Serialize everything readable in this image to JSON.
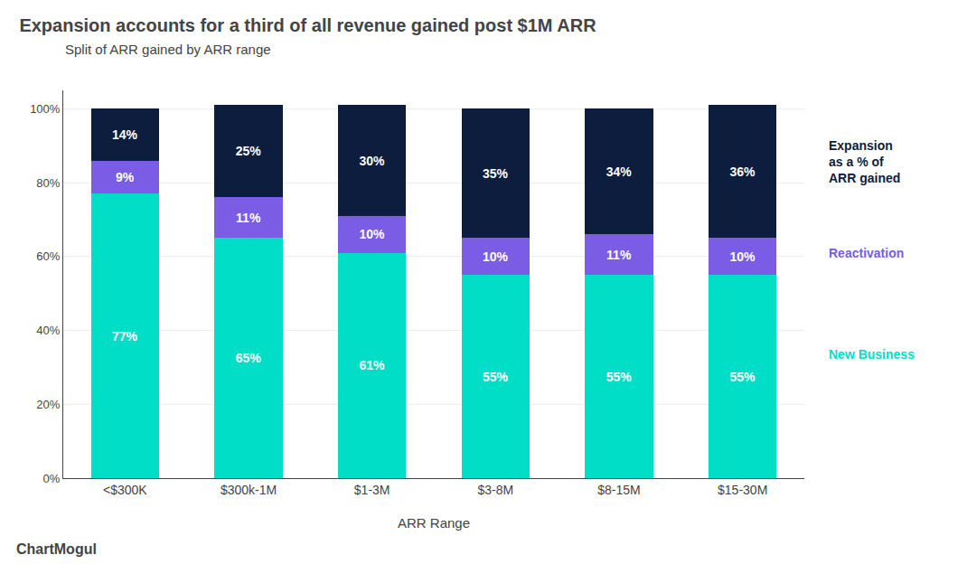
{
  "chart_data": {
    "type": "bar",
    "title": "Expansion accounts for a third of all revenue gained post $1M ARR",
    "subtitle": "Split of ARR gained by ARR range",
    "xlabel": "ARR Range",
    "categories": [
      "<$300K",
      "$300k-1M",
      "$1-3M",
      "$3-8M",
      "$8-15M",
      "$15-30M"
    ],
    "series": [
      {
        "name": "New Business",
        "color": "#00DEC8",
        "values": [
          77,
          65,
          61,
          55,
          55,
          55
        ],
        "value_labels": [
          "77%",
          "65%",
          "61%",
          "55%",
          "55%",
          "55%"
        ]
      },
      {
        "name": "Reactivation",
        "color": "#7B5CE5",
        "values": [
          9,
          11,
          10,
          10,
          11,
          10
        ],
        "value_labels": [
          "9%",
          "11%",
          "10%",
          "10%",
          "11%",
          "10%"
        ]
      },
      {
        "name": "Expansion\nas a % of\nARR gained",
        "color": "#0D1D3E",
        "values": [
          14,
          25,
          30,
          35,
          34,
          36
        ],
        "value_labels": [
          "14%",
          "25%",
          "30%",
          "35%",
          "34%",
          "36%"
        ]
      }
    ],
    "stacked": true,
    "data_labels": true,
    "ylim": [
      0,
      105
    ],
    "yticks": [
      {
        "value": 0,
        "label": "0%"
      },
      {
        "value": 20,
        "label": "20%"
      },
      {
        "value": 40,
        "label": "40%"
      },
      {
        "value": 60,
        "label": "60%"
      },
      {
        "value": 80,
        "label": "80%"
      },
      {
        "value": 100,
        "label": "100%"
      }
    ],
    "grid": true,
    "annotations": [
      "ChartMogul"
    ]
  }
}
